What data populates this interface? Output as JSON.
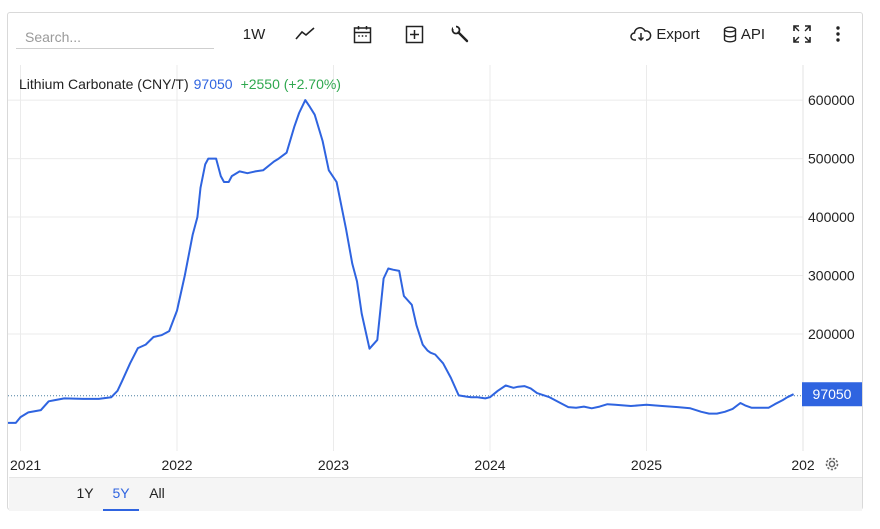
{
  "toolbar": {
    "search_placeholder": "Search...",
    "period_label": "1W",
    "export_label": "Export",
    "api_label": "API",
    "icons": [
      "line-chart-icon",
      "calendar-icon",
      "plus-box-icon",
      "wrench-icon",
      "cloud-download-icon",
      "database-icon",
      "fullscreen-icon",
      "more-vertical-icon"
    ]
  },
  "legend": {
    "name": "Lithium Carbonate (CNY/T)",
    "price": "97050",
    "change": "+2550 (+2.70%)",
    "price_color": "#2f64e0",
    "change_color": "#2fa84f"
  },
  "price_tag": "97050",
  "range_buttons": [
    {
      "label": "1Y",
      "active": false
    },
    {
      "label": "5Y",
      "active": true
    },
    {
      "label": "All",
      "active": false
    }
  ],
  "chart_data": {
    "type": "line",
    "series": [
      {
        "name": "Lithium Carbonate (CNY/T)",
        "color": "#2f64e0",
        "x": [
          2020.92,
          2020.97,
          2021.0,
          2021.05,
          2021.13,
          2021.18,
          2021.22,
          2021.28,
          2021.4,
          2021.5,
          2021.58,
          2021.62,
          2021.65,
          2021.7,
          2021.75,
          2021.8,
          2021.85,
          2021.9,
          2021.95,
          2022.0,
          2022.05,
          2022.1,
          2022.13,
          2022.15,
          2022.18,
          2022.2,
          2022.22,
          2022.25,
          2022.28,
          2022.3,
          2022.33,
          2022.35,
          2022.4,
          2022.45,
          2022.5,
          2022.55,
          2022.62,
          2022.65,
          2022.7,
          2022.75,
          2022.78,
          2022.82,
          2022.85,
          2022.88,
          2022.93,
          2022.97,
          2023.02,
          2023.05,
          2023.08,
          2023.12,
          2023.15,
          2023.18,
          2023.23,
          2023.28,
          2023.32,
          2023.35,
          2023.38,
          2023.42,
          2023.45,
          2023.5,
          2023.53,
          2023.57,
          2023.6,
          2023.62,
          2023.65,
          2023.7,
          2023.75,
          2023.8,
          2023.85,
          2023.88,
          2023.92,
          2023.97,
          2024.0,
          2024.05,
          2024.1,
          2024.15,
          2024.18,
          2024.22,
          2024.26,
          2024.3,
          2024.38,
          2024.45,
          2024.5,
          2024.55,
          2024.6,
          2024.65,
          2024.7,
          2024.75,
          2024.8,
          2024.85,
          2024.9,
          2024.95,
          2025.0,
          2025.05,
          2025.1,
          2025.2,
          2025.28,
          2025.35,
          2025.4,
          2025.45,
          2025.5,
          2025.55,
          2025.6,
          2025.63,
          2025.67,
          2025.72,
          2025.78,
          2025.82,
          2025.87,
          2025.9,
          2025.94
        ],
        "values": [
          48000,
          48000,
          58000,
          66000,
          70000,
          85000,
          87000,
          90000,
          89000,
          89000,
          92000,
          103000,
          120000,
          150000,
          176000,
          182000,
          195000,
          198000,
          205000,
          240000,
          300000,
          370000,
          400000,
          450000,
          490000,
          500000,
          500000,
          500000,
          470000,
          460000,
          460000,
          470000,
          478000,
          475000,
          478000,
          480000,
          495000,
          500000,
          510000,
          555000,
          578000,
          600000,
          588000,
          575000,
          530000,
          480000,
          460000,
          420000,
          380000,
          320000,
          290000,
          235000,
          175000,
          190000,
          295000,
          312000,
          310000,
          308000,
          265000,
          250000,
          215000,
          182000,
          172000,
          168000,
          165000,
          150000,
          125000,
          95000,
          93000,
          92000,
          92000,
          90000,
          92000,
          103000,
          112000,
          108000,
          110000,
          111000,
          107000,
          99000,
          92000,
          82000,
          75000,
          74000,
          76000,
          73000,
          76000,
          80000,
          79000,
          78000,
          77000,
          78000,
          79000,
          78000,
          77000,
          75000,
          73000,
          67000,
          64000,
          64000,
          67000,
          72000,
          82000,
          78000,
          74000,
          74000,
          74000,
          80000,
          87000,
          92000,
          97050
        ]
      }
    ],
    "x_ticks": [
      "2021",
      "2022",
      "2023",
      "2024",
      "2025",
      "202"
    ],
    "y_ticks": [
      200000,
      300000,
      400000,
      500000,
      600000
    ],
    "xlim": [
      2020.92,
      2026.0
    ],
    "ylim": [
      0,
      660000
    ],
    "reference_line": 94500,
    "grid": true,
    "legend_position": "top-left"
  }
}
